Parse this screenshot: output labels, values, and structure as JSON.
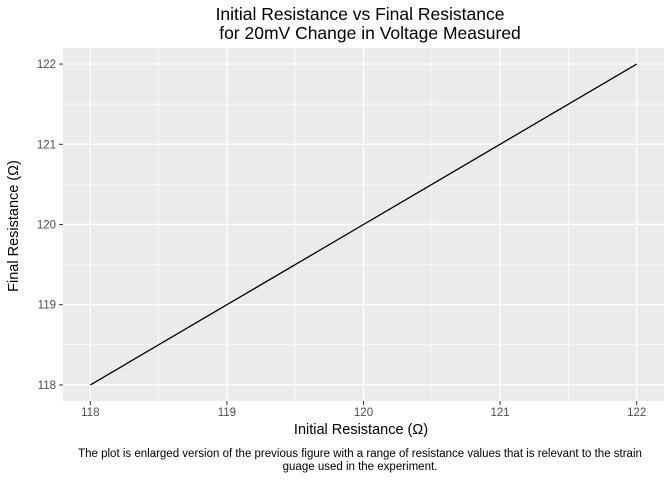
{
  "chart_data": {
    "type": "line",
    "title": "Initial Resistance vs Final Resistance",
    "subtitle": "for 20mV Change in Voltage Measured",
    "xlabel": "Initial Resistance (Ω)",
    "ylabel": "Final Resistance (Ω)",
    "xlim": [
      117.8,
      122.2
    ],
    "ylim": [
      117.8,
      122.2
    ],
    "x_ticks": [
      118,
      119,
      120,
      121,
      122
    ],
    "y_ticks": [
      118,
      119,
      120,
      121,
      122
    ],
    "x_minor": [
      118.5,
      119.5,
      120.5,
      121.5
    ],
    "y_minor": [
      118.5,
      119.5,
      120.5,
      121.5
    ],
    "grid": true,
    "panel_background": "#ebebeb",
    "grid_color": "#ffffff",
    "line_color": "#000000",
    "series": [
      {
        "x": [
          118,
          119,
          120,
          121,
          122
        ],
        "y": [
          118,
          119,
          120,
          121,
          122
        ]
      }
    ]
  },
  "caption": {
    "line1": "The plot is enlarged version of the previous figure with a range of resistance values that is relevant to the strain",
    "line2": "guage used in the experiment."
  }
}
